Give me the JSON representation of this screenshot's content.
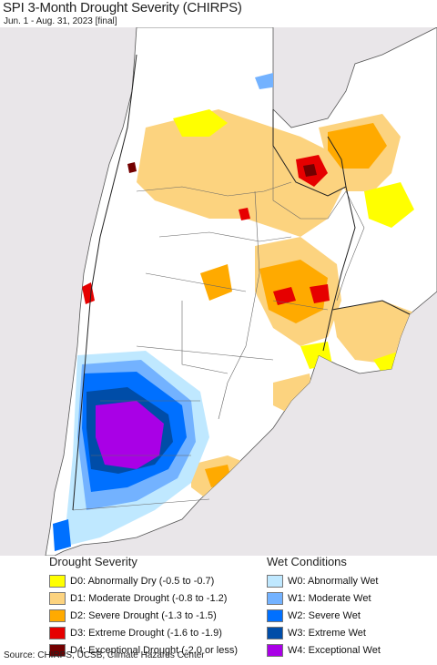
{
  "header": {
    "title": "SPI 3-Month Drought Severity (CHIRPS)",
    "subtitle": "Jun. 1 - Aug. 31, 2023 [final]"
  },
  "colors": {
    "ocean": "#e9e6e9",
    "no_data_land": "#ffffff",
    "d0": "#ffff00",
    "d1": "#fcd37f",
    "d2": "#ffaa00",
    "d3": "#e60000",
    "d4": "#730000",
    "w0": "#bfe8ff",
    "w1": "#73b2ff",
    "w2": "#0070ff",
    "w3": "#004da8",
    "w4": "#a900e6"
  },
  "legend": {
    "drought": {
      "title": "Drought Severity",
      "items": [
        {
          "label": "D0: Abnormally Dry (-0.5 to -0.7)",
          "color": "#ffff00"
        },
        {
          "label": "D1: Moderate Drought (-0.8 to -1.2)",
          "color": "#fcd37f"
        },
        {
          "label": "D2: Severe Drought (-1.3 to -1.5)",
          "color": "#ffaa00"
        },
        {
          "label": "D3: Extreme Drought (-1.6 to -1.9)",
          "color": "#e60000"
        },
        {
          "label": "D4: Exceptional Drought (-2.0 or less)",
          "color": "#730000"
        }
      ]
    },
    "wet": {
      "title": "Wet Conditions",
      "items": [
        {
          "label": "W0: Abnormally Wet",
          "color": "#bfe8ff"
        },
        {
          "label": "W1: Moderate Wet",
          "color": "#73b2ff"
        },
        {
          "label": "W2: Severe Wet",
          "color": "#0070ff"
        },
        {
          "label": "W3: Extreme Wet",
          "color": "#004da8"
        },
        {
          "label": "W4: Exceptional Wet",
          "color": "#a900e6"
        }
      ]
    }
  },
  "footer": {
    "source": "Source: CHIRPS, UCSB, Climate Hazards Center"
  }
}
